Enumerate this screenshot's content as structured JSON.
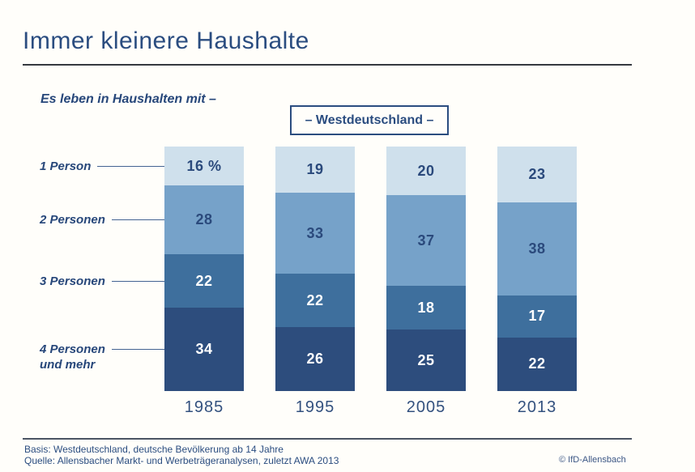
{
  "header": {
    "title": "Immer kleinere Haushalte"
  },
  "subtitle": "Es leben in Haushalten mit –",
  "region_box_label": "– Westdeutschland –",
  "chart_data": {
    "type": "bar",
    "stacked": true,
    "orientation": "vertical",
    "unit": "percent",
    "ylim": [
      0,
      100
    ],
    "categories": [
      "1985",
      "1995",
      "2005",
      "2013"
    ],
    "series": [
      {
        "name": "1 Person",
        "name_lines": [
          "1 Person"
        ],
        "values": [
          16,
          19,
          20,
          23
        ],
        "color": "#cfe0ec",
        "label_color": "#2b4a7c"
      },
      {
        "name": "2 Personen",
        "name_lines": [
          "2 Personen"
        ],
        "values": [
          28,
          33,
          37,
          38
        ],
        "color": "#76a2c9",
        "label_color": "#2b4a7c"
      },
      {
        "name": "3 Personen",
        "name_lines": [
          "3 Personen"
        ],
        "values": [
          22,
          22,
          18,
          17
        ],
        "color": "#3e6f9d",
        "label_color": "#ffffff"
      },
      {
        "name": "4 Personen und mehr",
        "name_lines": [
          "4 Personen",
          "und mehr"
        ],
        "values": [
          34,
          26,
          25,
          22
        ],
        "color": "#2d4d7d",
        "label_color": "#ffffff"
      }
    ],
    "first_label_suffix": " %",
    "legend_position": "left-row-labels",
    "grid": false
  },
  "footer": {
    "basis": "Basis: Westdeutschland, deutsche Bevölkerung ab 14 Jahre",
    "quelle": "Quelle: Allensbacher Markt- und Werbeträgeranalysen, zuletzt AWA 2013",
    "copyright": "© IfD-Allensbach"
  }
}
